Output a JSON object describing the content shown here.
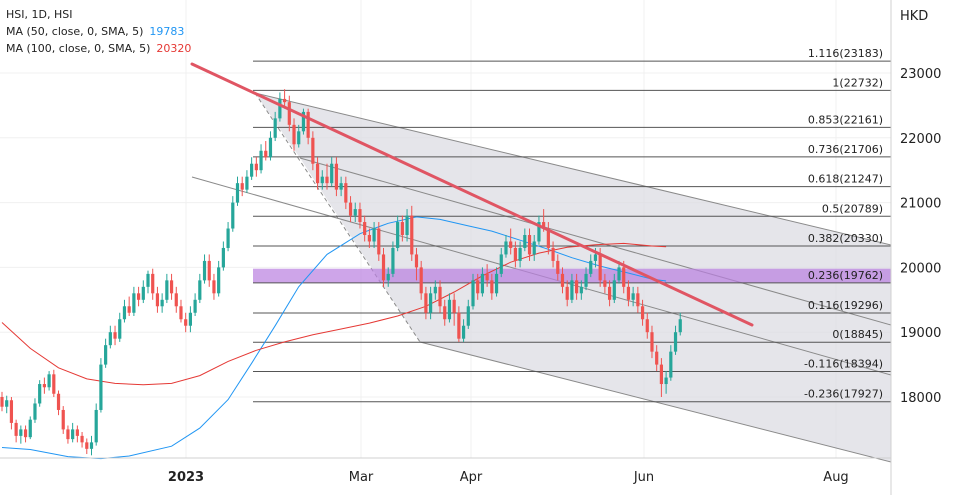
{
  "legend": {
    "symbol": "HSI, 1D, HSI",
    "ma50_label": "MA (50, close, 0, SMA, 5)",
    "ma50_value": "19783",
    "ma100_label": "MA (100, close, 0, SMA, 5)",
    "ma100_value": "20320"
  },
  "colors": {
    "up": "#26a69a",
    "down": "#ef5350",
    "ma50": "#2196f3",
    "ma100": "#e53935",
    "trendline": "#e05563",
    "fib_zone": "#b97fe0",
    "channel_fill": "#dcdce3"
  },
  "chart_data": {
    "type": "candlestick",
    "currency": "HKD",
    "y_ticks": [
      18000,
      19000,
      20000,
      21000,
      22000,
      23000
    ],
    "y_tick_labels": [
      "18000",
      "19000",
      "20000",
      "21000",
      "22000",
      "23000"
    ],
    "x_ticks": [
      "2023",
      "Mar",
      "Apr",
      "Jun",
      "Aug"
    ],
    "ylim": [
      17100,
      24100
    ],
    "fib_levels": [
      {
        "label": "1.116(23183)",
        "value": 23183
      },
      {
        "label": "1(22732)",
        "value": 22732
      },
      {
        "label": "0.853(22161)",
        "value": 22161
      },
      {
        "label": "0.736(21706)",
        "value": 21706
      },
      {
        "label": "0.618(21247)",
        "value": 21247
      },
      {
        "label": "0.5(20789)",
        "value": 20789
      },
      {
        "label": "0.382(20330)",
        "value": 20330
      },
      {
        "label": "0.236(19762)",
        "value": 19762
      },
      {
        "label": "0.116(19296)",
        "value": 19296
      },
      {
        "label": "0(18845)",
        "value": 18845
      },
      {
        "label": "-0.116(18394)",
        "value": 18394
      },
      {
        "label": "-0.236(17927)",
        "value": 17927
      }
    ],
    "candles": [
      [
        18000,
        17850,
        18080,
        17780
      ],
      [
        17850,
        17950,
        18020,
        17750
      ],
      [
        17950,
        17600,
        18000,
        17500
      ],
      [
        17600,
        17400,
        17650,
        17300
      ],
      [
        17400,
        17500,
        17560,
        17280
      ],
      [
        17500,
        17380,
        17560,
        17300
      ],
      [
        17380,
        17650,
        17700,
        17350
      ],
      [
        17650,
        17900,
        17980,
        17600
      ],
      [
        17900,
        18200,
        18260,
        17850
      ],
      [
        18200,
        18150,
        18300,
        18050
      ],
      [
        18150,
        18350,
        18400,
        18100
      ],
      [
        18350,
        18050,
        18420,
        18000
      ],
      [
        18050,
        17800,
        18100,
        17720
      ],
      [
        17800,
        17500,
        17860,
        17430
      ],
      [
        17500,
        17350,
        17560,
        17280
      ],
      [
        17350,
        17500,
        17600,
        17300
      ],
      [
        17500,
        17400,
        17560,
        17300
      ],
      [
        17400,
        17300,
        17460,
        17220
      ],
      [
        17300,
        17200,
        17360,
        17120
      ],
      [
        17200,
        17300,
        17400,
        17100
      ],
      [
        17300,
        17800,
        17900,
        17250
      ],
      [
        17800,
        18500,
        18600,
        17760
      ],
      [
        18500,
        18800,
        18900,
        18450
      ],
      [
        18800,
        19000,
        19100,
        18750
      ],
      [
        19000,
        18900,
        19100,
        18800
      ],
      [
        18900,
        19200,
        19300,
        18850
      ],
      [
        19200,
        19400,
        19500,
        19150
      ],
      [
        19400,
        19300,
        19550,
        19250
      ],
      [
        19300,
        19600,
        19700,
        19250
      ],
      [
        19600,
        19500,
        19700,
        19400
      ],
      [
        19500,
        19700,
        19800,
        19450
      ],
      [
        19700,
        19900,
        19950,
        19600
      ],
      [
        19900,
        19600,
        19980,
        19500
      ],
      [
        19600,
        19400,
        19700,
        19300
      ],
      [
        19400,
        19500,
        19600,
        19300
      ],
      [
        19500,
        19800,
        19900,
        19450
      ],
      [
        19800,
        19600,
        19900,
        19500
      ],
      [
        19600,
        19400,
        19700,
        19300
      ],
      [
        19400,
        19200,
        19500,
        19150
      ],
      [
        19200,
        19100,
        19300,
        19000
      ],
      [
        19100,
        19300,
        19400,
        19000
      ],
      [
        19300,
        19500,
        19600,
        19250
      ],
      [
        19500,
        19800,
        19900,
        19450
      ],
      [
        19800,
        20100,
        20200,
        19750
      ],
      [
        20100,
        19800,
        20200,
        19700
      ],
      [
        19800,
        19600,
        19900,
        19500
      ],
      [
        19600,
        20000,
        20100,
        19550
      ],
      [
        20000,
        20300,
        20400,
        19950
      ],
      [
        20300,
        20600,
        20700,
        20250
      ],
      [
        20600,
        21000,
        21100,
        20550
      ],
      [
        21000,
        21300,
        21400,
        20950
      ],
      [
        21300,
        21200,
        21400,
        21100
      ],
      [
        21200,
        21400,
        21500,
        21150
      ],
      [
        21400,
        21600,
        21700,
        21350
      ],
      [
        21600,
        21500,
        21700,
        21400
      ],
      [
        21500,
        21800,
        21900,
        21450
      ],
      [
        21800,
        21700,
        21950,
        21650
      ],
      [
        21700,
        22000,
        22100,
        21650
      ],
      [
        22000,
        22300,
        22400,
        21950
      ],
      [
        22300,
        22600,
        22700,
        22250
      ],
      [
        22600,
        22550,
        22750,
        22450
      ],
      [
        22550,
        22200,
        22650,
        22100
      ],
      [
        22200,
        21900,
        22300,
        21800
      ],
      [
        21900,
        22100,
        22200,
        21850
      ],
      [
        22100,
        22400,
        22450,
        22050
      ],
      [
        22400,
        22000,
        22450,
        21900
      ],
      [
        22000,
        21600,
        22100,
        21500
      ],
      [
        21600,
        21300,
        21700,
        21200
      ],
      [
        21300,
        21400,
        21500,
        21200
      ],
      [
        21400,
        21300,
        21600,
        21200
      ],
      [
        21300,
        21600,
        21700,
        21250
      ],
      [
        21600,
        21200,
        21700,
        21100
      ],
      [
        21200,
        21300,
        21400,
        21100
      ],
      [
        21300,
        21000,
        21400,
        20900
      ],
      [
        21000,
        20800,
        21100,
        20700
      ],
      [
        20800,
        20900,
        21000,
        20700
      ],
      [
        20900,
        20700,
        21000,
        20600
      ],
      [
        20700,
        20500,
        20800,
        20400
      ],
      [
        20500,
        20400,
        20600,
        20300
      ],
      [
        20400,
        20600,
        20700,
        20300
      ],
      [
        20600,
        20200,
        20700,
        20100
      ],
      [
        20200,
        19800,
        20300,
        19700
      ],
      [
        19800,
        19900,
        20000,
        19700
      ],
      [
        19900,
        20300,
        20400,
        19850
      ],
      [
        20300,
        20700,
        20800,
        20250
      ],
      [
        20700,
        20500,
        20800,
        20400
      ],
      [
        20500,
        20800,
        20900,
        20400
      ],
      [
        20800,
        20200,
        20950,
        20100
      ],
      [
        20200,
        20000,
        20300,
        19800
      ],
      [
        20000,
        19600,
        20100,
        19500
      ],
      [
        19600,
        19300,
        19700,
        19200
      ],
      [
        19300,
        19600,
        19700,
        19200
      ],
      [
        19600,
        19700,
        19800,
        19500
      ],
      [
        19700,
        19400,
        19800,
        19300
      ],
      [
        19400,
        19200,
        19500,
        19100
      ],
      [
        19200,
        19500,
        19600,
        19150
      ],
      [
        19500,
        19300,
        19600,
        19100
      ],
      [
        19300,
        18900,
        19400,
        18850
      ],
      [
        18900,
        19100,
        19200,
        18850
      ],
      [
        19100,
        19400,
        19500,
        19050
      ],
      [
        19400,
        19800,
        19900,
        19350
      ],
      [
        19800,
        19600,
        19900,
        19500
      ],
      [
        19600,
        19900,
        20000,
        19550
      ],
      [
        19900,
        19800,
        20050,
        19700
      ],
      [
        19800,
        19600,
        19900,
        19500
      ],
      [
        19600,
        19900,
        20000,
        19550
      ],
      [
        19900,
        20200,
        20300,
        19850
      ],
      [
        20200,
        20400,
        20500,
        20150
      ],
      [
        20400,
        20300,
        20600,
        20200
      ],
      [
        20300,
        20100,
        20400,
        20000
      ],
      [
        20100,
        20300,
        20400,
        20000
      ],
      [
        20300,
        20500,
        20600,
        20250
      ],
      [
        20500,
        20200,
        20600,
        20100
      ],
      [
        20200,
        20400,
        20500,
        20100
      ],
      [
        20400,
        20700,
        20800,
        20350
      ],
      [
        20700,
        20600,
        20900,
        20550
      ],
      [
        20600,
        20300,
        20700,
        20200
      ],
      [
        20300,
        20100,
        20400,
        20000
      ],
      [
        20100,
        19900,
        20200,
        19800
      ],
      [
        19900,
        19700,
        20000,
        19600
      ],
      [
        19700,
        19500,
        19800,
        19400
      ],
      [
        19500,
        19800,
        19900,
        19450
      ],
      [
        19800,
        19600,
        19900,
        19500
      ],
      [
        19600,
        19700,
        19800,
        19500
      ],
      [
        19700,
        19900,
        20000,
        19650
      ],
      [
        19900,
        20100,
        20200,
        19850
      ],
      [
        20100,
        20200,
        20300,
        20000
      ],
      [
        20200,
        19800,
        20300,
        19700
      ],
      [
        19800,
        19700,
        19900,
        19600
      ],
      [
        19700,
        19500,
        19800,
        19400
      ],
      [
        19500,
        19800,
        19900,
        19450
      ],
      [
        19800,
        20000,
        20100,
        19750
      ],
      [
        20000,
        19700,
        20100,
        19600
      ],
      [
        19700,
        19500,
        19800,
        19400
      ],
      [
        19500,
        19600,
        19700,
        19400
      ],
      [
        19600,
        19400,
        19700,
        19300
      ],
      [
        19400,
        19200,
        19500,
        19100
      ],
      [
        19200,
        19000,
        19300,
        18900
      ],
      [
        19000,
        18700,
        19100,
        18600
      ],
      [
        18700,
        18500,
        18800,
        18400
      ],
      [
        18500,
        18200,
        18600,
        18000
      ],
      [
        18200,
        18300,
        18400,
        18050
      ],
      [
        18300,
        18700,
        18800,
        18250
      ],
      [
        18700,
        19000,
        19100,
        18650
      ],
      [
        19000,
        19200,
        19300,
        18950
      ]
    ],
    "ma50": [
      [
        0,
        17220
      ],
      [
        6,
        17190
      ],
      [
        14,
        17080
      ],
      [
        21,
        17050
      ],
      [
        27,
        17090
      ],
      [
        36,
        17240
      ],
      [
        42,
        17520
      ],
      [
        48,
        17960
      ],
      [
        53,
        18520
      ],
      [
        58,
        19100
      ],
      [
        63,
        19700
      ],
      [
        69,
        20200
      ],
      [
        76,
        20520
      ],
      [
        82,
        20680
      ],
      [
        88,
        20780
      ],
      [
        93,
        20740
      ],
      [
        99,
        20640
      ],
      [
        104,
        20560
      ],
      [
        110,
        20420
      ],
      [
        116,
        20280
      ],
      [
        121,
        20150
      ],
      [
        127,
        20020
      ],
      [
        132,
        19930
      ],
      [
        138,
        19820
      ],
      [
        141,
        19790
      ]
    ],
    "ma100": [
      [
        0,
        19150
      ],
      [
        6,
        18750
      ],
      [
        12,
        18450
      ],
      [
        18,
        18280
      ],
      [
        24,
        18210
      ],
      [
        30,
        18190
      ],
      [
        36,
        18210
      ],
      [
        42,
        18330
      ],
      [
        48,
        18550
      ],
      [
        54,
        18720
      ],
      [
        60,
        18850
      ],
      [
        66,
        18960
      ],
      [
        72,
        19050
      ],
      [
        78,
        19140
      ],
      [
        84,
        19250
      ],
      [
        90,
        19400
      ],
      [
        96,
        19620
      ],
      [
        102,
        19870
      ],
      [
        108,
        20080
      ],
      [
        114,
        20220
      ],
      [
        120,
        20310
      ],
      [
        126,
        20350
      ],
      [
        132,
        20370
      ],
      [
        138,
        20330
      ],
      [
        141,
        20320
      ]
    ]
  }
}
